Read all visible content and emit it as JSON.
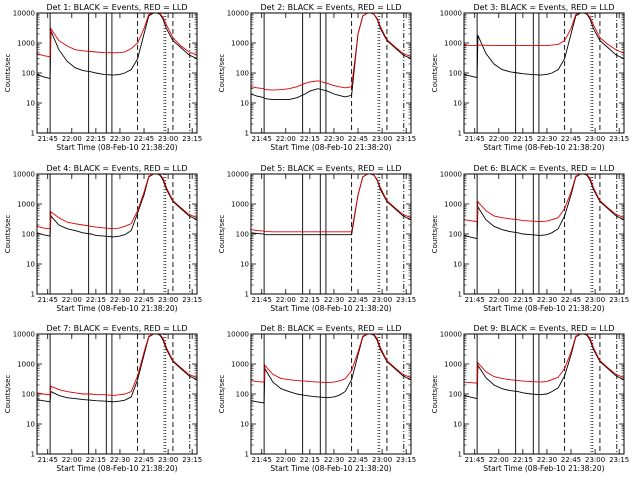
{
  "chart_data": {
    "type": "line",
    "layout": "3x3 grid of panels",
    "yscale": "log",
    "ylim": [
      1,
      10000
    ],
    "ytick_labels": [
      "1",
      "10",
      "100",
      "1000",
      "10000"
    ],
    "xtick_labels": [
      "21:45",
      "22:00",
      "22:15",
      "22:30",
      "22:45",
      "23:00",
      "23:15"
    ],
    "xlim": [
      "21:38:20",
      "23:18"
    ],
    "xlabel": "Start Time (08-Feb-10 21:38:20)",
    "ylabel": "Counts/sec",
    "series_colors": {
      "events": "#000000",
      "lld": "#dd0000"
    },
    "x": [
      "21:38:20",
      "21:42",
      "21:46:30",
      "21:47",
      "21:52",
      "21:57",
      "22:02",
      "22:07",
      "22:12",
      "22:15",
      "22:20",
      "22:26",
      "22:30",
      "22:33",
      "22:37",
      "22:41",
      "22:45",
      "22:48",
      "22:51",
      "22:53",
      "22:55",
      "22:57",
      "22:59",
      "23:03",
      "23:08",
      "23:13",
      "23:18"
    ],
    "marker_lines": {
      "solid": [
        "21:46:30",
        "22:10:30",
        "22:21:30",
        "22:25"
      ],
      "dashed": [
        "22:41",
        "23:03"
      ],
      "dotted": [
        "22:57:30",
        "22:58:30"
      ],
      "dash_dot": [
        "23:13:30"
      ]
    },
    "panels": [
      {
        "title": "Det  1: BLACK = Events, RED = LLD",
        "events": [
          90,
          75,
          65,
          2500,
          600,
          250,
          150,
          120,
          110,
          100,
          90,
          85,
          90,
          100,
          130,
          300,
          2000,
          8000,
          10000,
          10000,
          9000,
          6000,
          3000,
          1200,
          700,
          400,
          300
        ],
        "lld": [
          450,
          380,
          350,
          3000,
          1200,
          800,
          600,
          550,
          520,
          500,
          480,
          470,
          480,
          500,
          650,
          1000,
          3000,
          9000,
          10000,
          10000,
          9500,
          7000,
          4000,
          1500,
          800,
          500,
          400
        ]
      },
      {
        "title": "Det  2: BLACK = Events, RED = LLD",
        "events": [
          20,
          17,
          15,
          14,
          13,
          13,
          13,
          15,
          20,
          25,
          30,
          25,
          20,
          18,
          16,
          18,
          2000,
          8000,
          10000,
          10000,
          9000,
          6000,
          3000,
          1200,
          700,
          400,
          300
        ],
        "lld": [
          35,
          32,
          30,
          28,
          27,
          28,
          30,
          35,
          45,
          50,
          55,
          45,
          38,
          35,
          32,
          35,
          2000,
          8000,
          10000,
          10000,
          9000,
          6500,
          3500,
          1300,
          750,
          450,
          350
        ]
      },
      {
        "title": "Det  3: BLACK = Events, RED = LLD",
        "events": [
          90,
          80,
          70,
          1800,
          450,
          200,
          130,
          110,
          100,
          95,
          90,
          85,
          90,
          100,
          130,
          300,
          2000,
          8000,
          10000,
          10000,
          9000,
          6000,
          3000,
          1200,
          700,
          400,
          300
        ],
        "lld": [
          850,
          830,
          820,
          850,
          840,
          830,
          820,
          820,
          820,
          820,
          820,
          820,
          820,
          850,
          900,
          1200,
          3000,
          9000,
          10000,
          10000,
          9500,
          7000,
          4000,
          1500,
          900,
          600,
          450
        ]
      },
      {
        "title": "Det  4: BLACK = Events, RED = LLD",
        "events": [
          110,
          95,
          85,
          400,
          200,
          150,
          130,
          110,
          100,
          90,
          85,
          80,
          85,
          95,
          130,
          500,
          2000,
          8000,
          10000,
          10000,
          9000,
          6000,
          3000,
          1200,
          700,
          400,
          300
        ],
        "lld": [
          180,
          160,
          150,
          550,
          350,
          250,
          220,
          200,
          180,
          170,
          160,
          150,
          160,
          180,
          220,
          600,
          2500,
          8500,
          10000,
          10000,
          9500,
          7000,
          3500,
          1300,
          750,
          450,
          350
        ]
      },
      {
        "title": "Det  5: BLACK = Events, RED = LLD",
        "events": [
          110,
          105,
          100,
          95,
          95,
          95,
          95,
          95,
          95,
          95,
          95,
          95,
          95,
          95,
          95,
          95,
          2000,
          8000,
          10000,
          10000,
          9000,
          6000,
          3000,
          1200,
          700,
          400,
          300
        ],
        "lld": [
          140,
          130,
          125,
          120,
          118,
          118,
          118,
          118,
          118,
          118,
          118,
          118,
          118,
          118,
          118,
          118,
          2000,
          8000,
          10000,
          10000,
          9000,
          6500,
          3500,
          1300,
          750,
          450,
          350
        ]
      },
      {
        "title": "Det  6: BLACK = Events, RED = LLD",
        "events": [
          90,
          80,
          70,
          800,
          300,
          180,
          140,
          120,
          110,
          100,
          95,
          90,
          95,
          110,
          150,
          400,
          2000,
          8000,
          10000,
          10000,
          9000,
          6000,
          3000,
          1200,
          700,
          400,
          300
        ],
        "lld": [
          300,
          280,
          260,
          1200,
          600,
          400,
          350,
          320,
          300,
          280,
          270,
          260,
          270,
          300,
          350,
          700,
          2500,
          8500,
          10000,
          10000,
          9500,
          7000,
          3500,
          1300,
          750,
          450,
          350
        ]
      },
      {
        "title": "Det  7: BLACK = Events, RED = LLD",
        "events": [
          65,
          60,
          55,
          120,
          90,
          75,
          70,
          65,
          62,
          60,
          58,
          55,
          58,
          62,
          80,
          300,
          2000,
          8000,
          10000,
          10000,
          9000,
          6000,
          3000,
          1200,
          700,
          400,
          300
        ],
        "lld": [
          110,
          100,
          95,
          180,
          140,
          120,
          110,
          100,
          100,
          95,
          95,
          90,
          95,
          100,
          120,
          400,
          2500,
          8500,
          10000,
          10000,
          9500,
          7000,
          3500,
          1300,
          750,
          450,
          350
        ]
      },
      {
        "title": "Det  8: BLACK = Events, RED = LLD",
        "events": [
          60,
          55,
          50,
          700,
          250,
          150,
          120,
          100,
          90,
          85,
          80,
          75,
          80,
          90,
          120,
          300,
          2000,
          8000,
          10000,
          10000,
          9000,
          6000,
          3000,
          1200,
          700,
          400,
          300
        ],
        "lld": [
          280,
          260,
          250,
          900,
          450,
          330,
          300,
          280,
          270,
          260,
          250,
          240,
          250,
          270,
          320,
          600,
          2500,
          8500,
          10000,
          10000,
          9500,
          7000,
          3500,
          1300,
          750,
          450,
          350
        ]
      },
      {
        "title": "Det  9: BLACK = Events, RED = LLD",
        "events": [
          90,
          80,
          70,
          900,
          350,
          200,
          150,
          130,
          120,
          110,
          100,
          95,
          100,
          120,
          160,
          400,
          2000,
          8000,
          10000,
          10000,
          9000,
          6000,
          3000,
          1200,
          700,
          400,
          300
        ],
        "lld": [
          250,
          240,
          230,
          1100,
          550,
          380,
          330,
          300,
          280,
          270,
          260,
          250,
          260,
          300,
          360,
          700,
          2500,
          8500,
          10000,
          10000,
          9500,
          7000,
          3500,
          1300,
          750,
          450,
          350
        ]
      }
    ]
  }
}
